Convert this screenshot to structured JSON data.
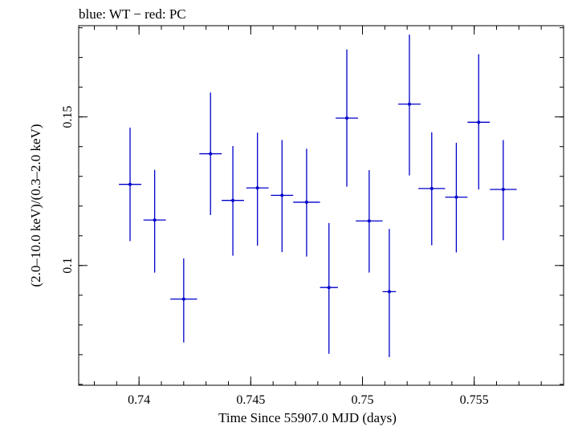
{
  "chart_data": {
    "type": "scatter",
    "title": "blue: WT − red: PC",
    "xlabel": "Time Since 55907.0 MJD (days)",
    "ylabel": "(2.0–10.0 keV)/(0.3–2.0 keV)",
    "xlim": [
      0.7373,
      0.759
    ],
    "ylim": [
      0.0597,
      0.1807
    ],
    "x_ticks": [
      {
        "value": 0.74,
        "label": "0.74"
      },
      {
        "value": 0.745,
        "label": "0.745"
      },
      {
        "value": 0.75,
        "label": "0.75"
      },
      {
        "value": 0.755,
        "label": "0.755"
      }
    ],
    "y_ticks": [
      {
        "value": 0.1,
        "label": "0.1"
      },
      {
        "value": 0.15,
        "label": "0.15"
      }
    ],
    "grid": false,
    "series": [
      {
        "name": "WT",
        "color": "#0000cc",
        "points": [
          {
            "x": 0.7396,
            "y": 0.1273,
            "xerr": 0.0005,
            "yerr_lo": 0.0191,
            "yerr_hi": 0.0191
          },
          {
            "x": 0.7407,
            "y": 0.1153,
            "xerr": 0.0005,
            "yerr_lo": 0.0177,
            "yerr_hi": 0.0169
          },
          {
            "x": 0.742,
            "y": 0.0887,
            "xerr": 0.0006,
            "yerr_lo": 0.0146,
            "yerr_hi": 0.0137
          },
          {
            "x": 0.7432,
            "y": 0.1376,
            "xerr": 0.0005,
            "yerr_lo": 0.0206,
            "yerr_hi": 0.0206
          },
          {
            "x": 0.7442,
            "y": 0.1219,
            "xerr": 0.0005,
            "yerr_lo": 0.0186,
            "yerr_hi": 0.0183
          },
          {
            "x": 0.7453,
            "y": 0.1261,
            "xerr": 0.0005,
            "yerr_lo": 0.0194,
            "yerr_hi": 0.0186
          },
          {
            "x": 0.7464,
            "y": 0.1236,
            "xerr": 0.0005,
            "yerr_lo": 0.0191,
            "yerr_hi": 0.0186
          },
          {
            "x": 0.7475,
            "y": 0.1213,
            "xerr": 0.0006,
            "yerr_lo": 0.0183,
            "yerr_hi": 0.018
          },
          {
            "x": 0.7485,
            "y": 0.0926,
            "xerr": 0.0004,
            "yerr_lo": 0.0223,
            "yerr_hi": 0.0217
          },
          {
            "x": 0.7493,
            "y": 0.1496,
            "xerr": 0.0005,
            "yerr_lo": 0.0231,
            "yerr_hi": 0.0231
          },
          {
            "x": 0.7503,
            "y": 0.115,
            "xerr": 0.0006,
            "yerr_lo": 0.0174,
            "yerr_hi": 0.0171
          },
          {
            "x": 0.7512,
            "y": 0.0912,
            "xerr": 0.0003,
            "yerr_lo": 0.022,
            "yerr_hi": 0.0211
          },
          {
            "x": 0.7521,
            "y": 0.1543,
            "xerr": 0.0005,
            "yerr_lo": 0.024,
            "yerr_hi": 0.0234
          },
          {
            "x": 0.7531,
            "y": 0.1259,
            "xerr": 0.0006,
            "yerr_lo": 0.0191,
            "yerr_hi": 0.0189
          },
          {
            "x": 0.7542,
            "y": 0.123,
            "xerr": 0.0005,
            "yerr_lo": 0.0186,
            "yerr_hi": 0.0183
          },
          {
            "x": 0.7552,
            "y": 0.1482,
            "xerr": 0.0005,
            "yerr_lo": 0.0226,
            "yerr_hi": 0.0229
          },
          {
            "x": 0.7563,
            "y": 0.1256,
            "xerr": 0.0006,
            "yerr_lo": 0.0171,
            "yerr_hi": 0.0166
          }
        ]
      }
    ]
  }
}
